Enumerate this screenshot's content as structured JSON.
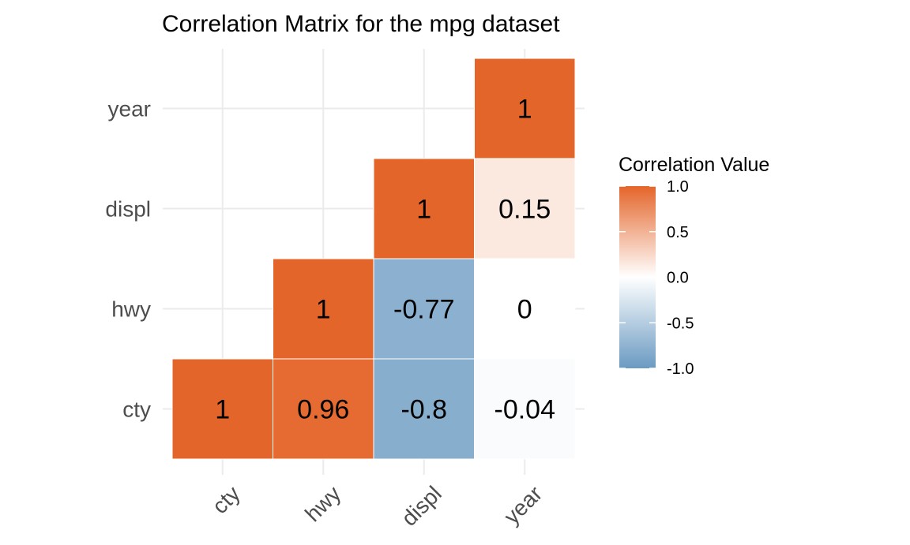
{
  "chart_data": {
    "type": "heatmap",
    "title": "Correlation Matrix for the mpg dataset",
    "x_categories": [
      "cty",
      "hwy",
      "displ",
      "year"
    ],
    "y_categories": [
      "cty",
      "hwy",
      "displ",
      "year"
    ],
    "cells": [
      {
        "x": "cty",
        "y": "cty",
        "value": 1,
        "label": "1"
      },
      {
        "x": "hwy",
        "y": "cty",
        "value": 0.96,
        "label": "0.96"
      },
      {
        "x": "displ",
        "y": "cty",
        "value": -0.8,
        "label": "-0.8"
      },
      {
        "x": "year",
        "y": "cty",
        "value": -0.04,
        "label": "-0.04"
      },
      {
        "x": "hwy",
        "y": "hwy",
        "value": 1,
        "label": "1"
      },
      {
        "x": "displ",
        "y": "hwy",
        "value": -0.77,
        "label": "-0.77"
      },
      {
        "x": "year",
        "y": "hwy",
        "value": 0,
        "label": "0"
      },
      {
        "x": "displ",
        "y": "displ",
        "value": 1,
        "label": "1"
      },
      {
        "x": "year",
        "y": "displ",
        "value": 0.15,
        "label": "0.15"
      },
      {
        "x": "year",
        "y": "year",
        "value": 1,
        "label": "1"
      }
    ],
    "legend": {
      "title": "Correlation Value",
      "placement": "right",
      "range": [
        -1,
        1
      ],
      "ticks": [
        {
          "value": 1.0,
          "label": "1.0"
        },
        {
          "value": 0.5,
          "label": "0.5"
        },
        {
          "value": 0.0,
          "label": "0.0"
        },
        {
          "value": -0.5,
          "label": "-0.5"
        },
        {
          "value": -1.0,
          "label": "-1.0"
        }
      ]
    },
    "colors": {
      "low": "#6a9ac2",
      "mid": "#ffffff",
      "high": "#e4652a",
      "grid": "#ebebeb"
    },
    "grid": true
  }
}
